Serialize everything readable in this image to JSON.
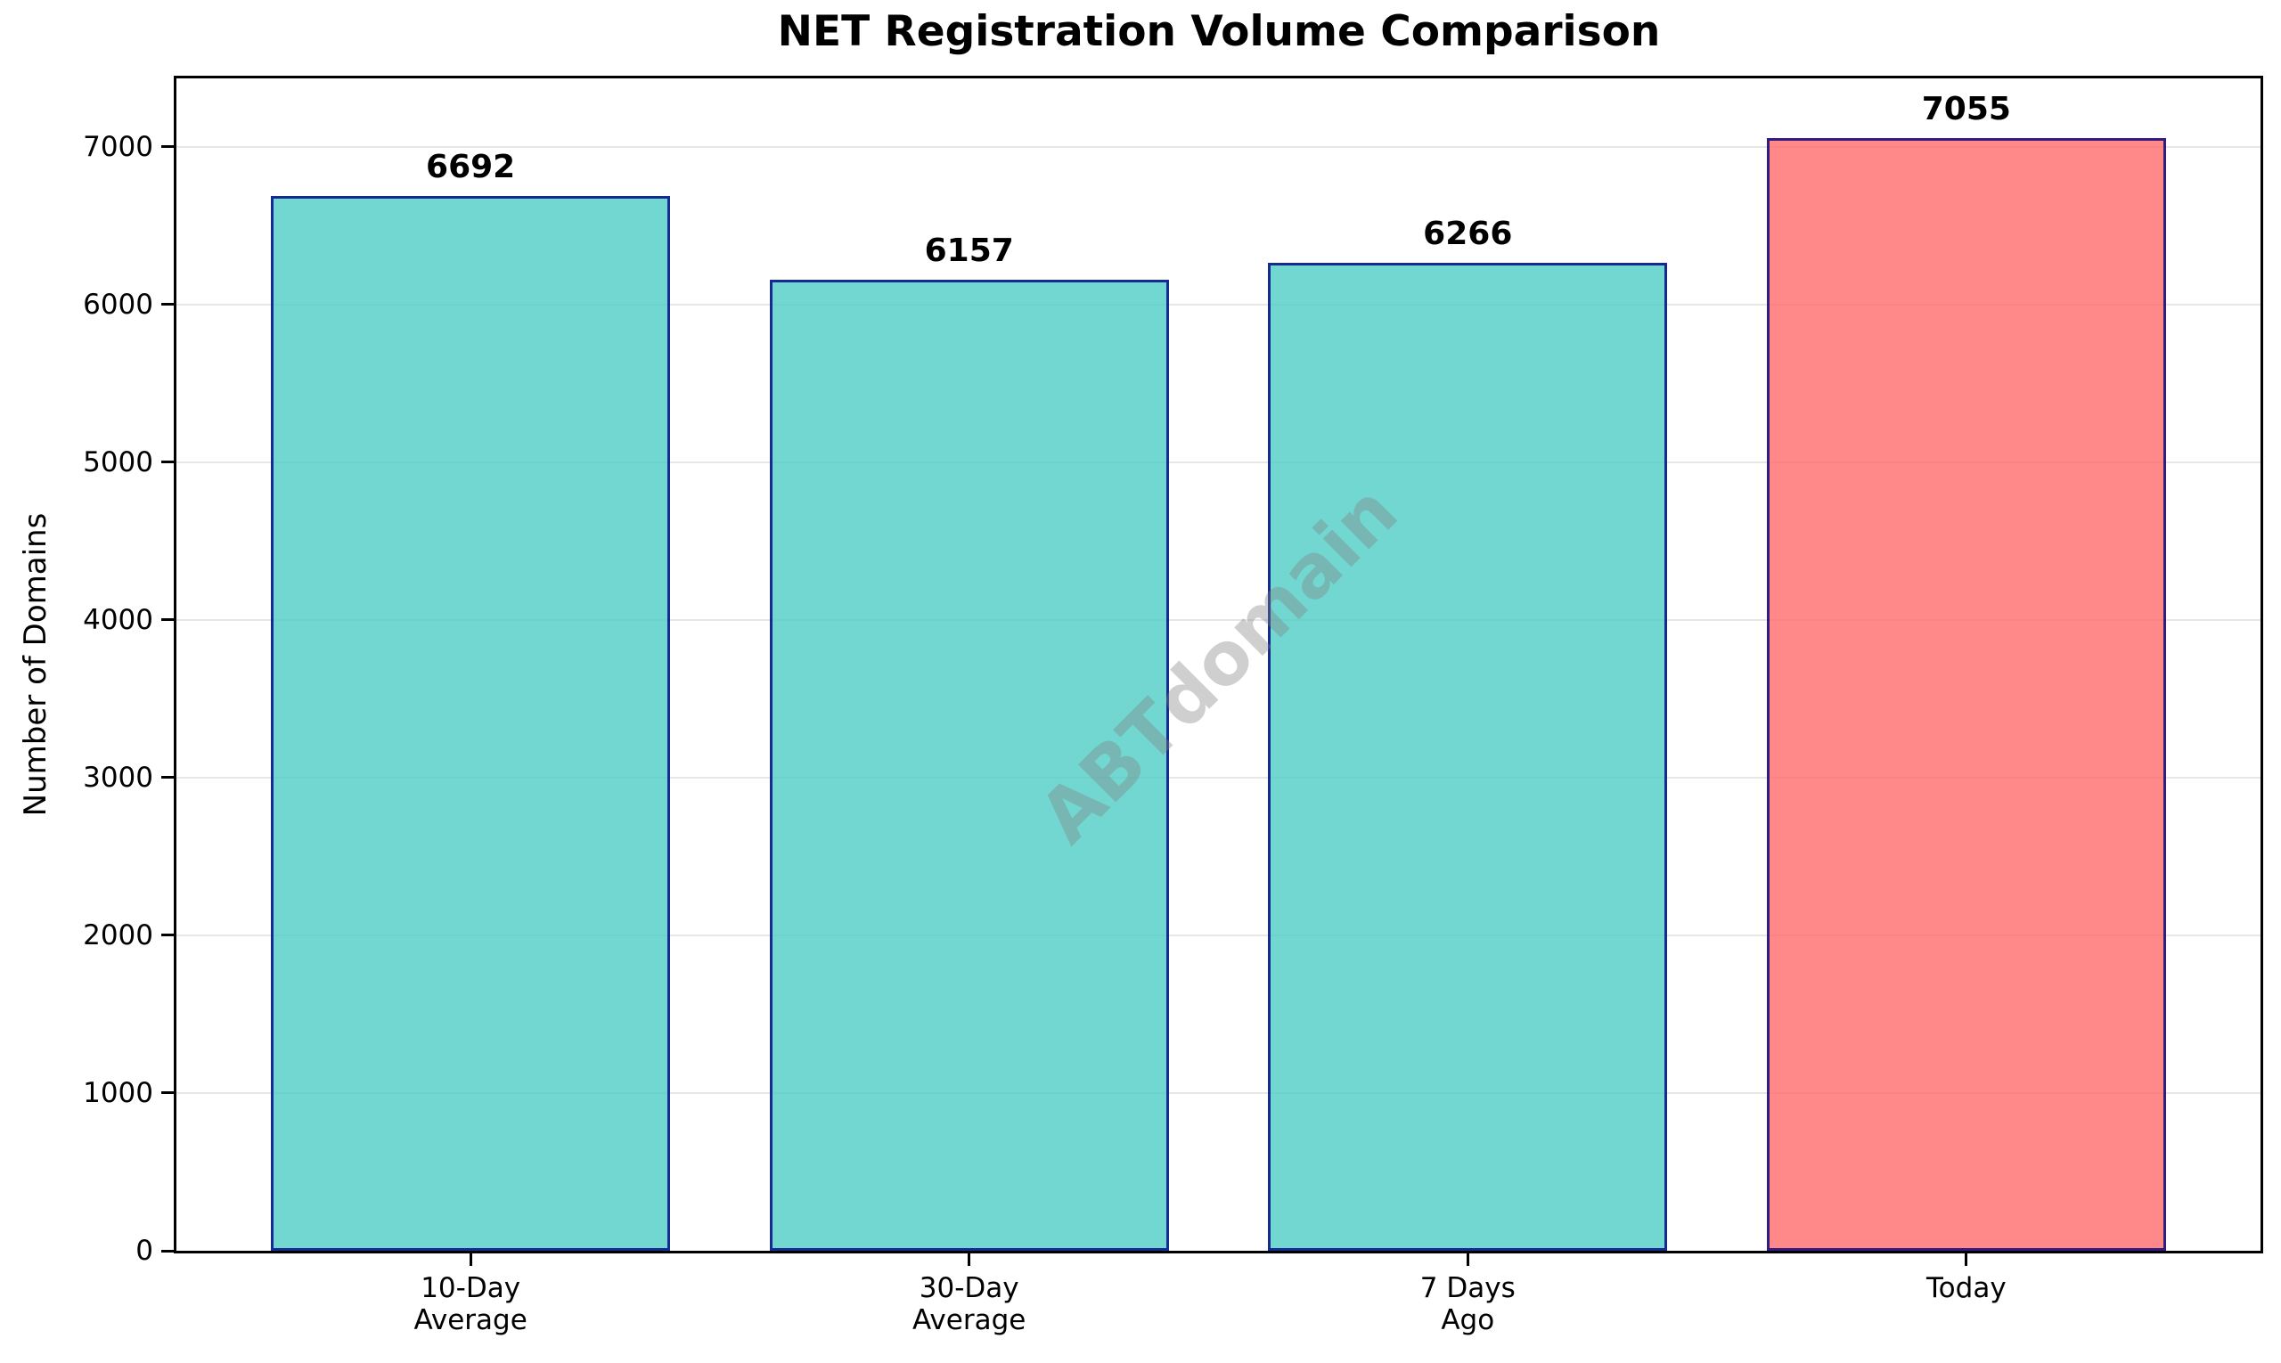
{
  "chart_data": {
    "type": "bar",
    "title": "NET Registration Volume Comparison",
    "ylabel": "Number of Domains",
    "categories": [
      "10-Day\nAverage",
      "30-Day\nAverage",
      "7 Days\nAgo",
      "Today"
    ],
    "values": [
      6692,
      6157,
      6266,
      7055
    ],
    "bar_value_labels": [
      "6692",
      "6157",
      "6266",
      "7055"
    ],
    "bar_colors": [
      "#4ECDC4",
      "#4ECDC4",
      "#4ECDC4",
      "#FF6B6B"
    ],
    "bar_alpha": 0.8,
    "edge_color": "#000080",
    "highlight_category": "Today",
    "ylim": [
      0,
      7435
    ],
    "yticks": [
      0,
      1000,
      2000,
      3000,
      4000,
      5000,
      6000,
      7000
    ],
    "grid": true,
    "grid_color": "#E7E7E7",
    "spine_color": "#000000",
    "legend": "none",
    "watermark": "ABTdomain",
    "watermark_color": "#808080"
  }
}
